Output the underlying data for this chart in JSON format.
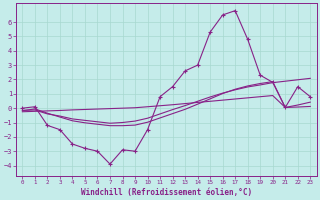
{
  "xlabel": "Windchill (Refroidissement éolien,°C)",
  "bg_color": "#c5ecea",
  "grid_color": "#a8d8d0",
  "line_color": "#882288",
  "x_ticks": [
    0,
    1,
    2,
    3,
    4,
    5,
    6,
    7,
    8,
    9,
    10,
    11,
    12,
    13,
    14,
    15,
    16,
    17,
    18,
    19,
    20,
    21,
    22,
    23
  ],
  "y_ticks": [
    -4,
    -3,
    -2,
    -1,
    0,
    1,
    2,
    3,
    4,
    5,
    6
  ],
  "ylim": [
    -4.7,
    7.3
  ],
  "xlim": [
    -0.5,
    23.5
  ],
  "series0_y": [
    0.0,
    0.1,
    -1.2,
    -1.5,
    -2.5,
    -2.8,
    -3.0,
    -3.9,
    -2.9,
    -3.0,
    -1.5,
    0.8,
    1.5,
    2.6,
    3.0,
    5.3,
    6.5,
    6.8,
    4.8,
    2.3,
    1.8,
    0.05,
    1.5,
    0.8
  ],
  "series1_y": [
    -0.15,
    -0.13,
    -0.4,
    -0.55,
    -0.75,
    -0.85,
    -0.95,
    -1.05,
    -1.0,
    -0.9,
    -0.7,
    -0.4,
    -0.1,
    0.18,
    0.48,
    0.78,
    1.05,
    1.28,
    1.48,
    1.62,
    1.78,
    1.88,
    1.98,
    2.08
  ],
  "series2_y": [
    -0.25,
    -0.22,
    -0.19,
    -0.16,
    -0.12,
    -0.09,
    -0.06,
    -0.03,
    0.0,
    0.03,
    0.1,
    0.17,
    0.24,
    0.32,
    0.4,
    0.48,
    0.56,
    0.64,
    0.72,
    0.8,
    0.88,
    0.05,
    0.08,
    0.12
  ],
  "series3_y": [
    -0.18,
    -0.05,
    -0.35,
    -0.62,
    -0.88,
    -1.02,
    -1.12,
    -1.22,
    -1.22,
    -1.18,
    -0.98,
    -0.68,
    -0.38,
    -0.08,
    0.28,
    0.65,
    1.02,
    1.32,
    1.55,
    1.72,
    1.85,
    0.05,
    0.22,
    0.42
  ]
}
